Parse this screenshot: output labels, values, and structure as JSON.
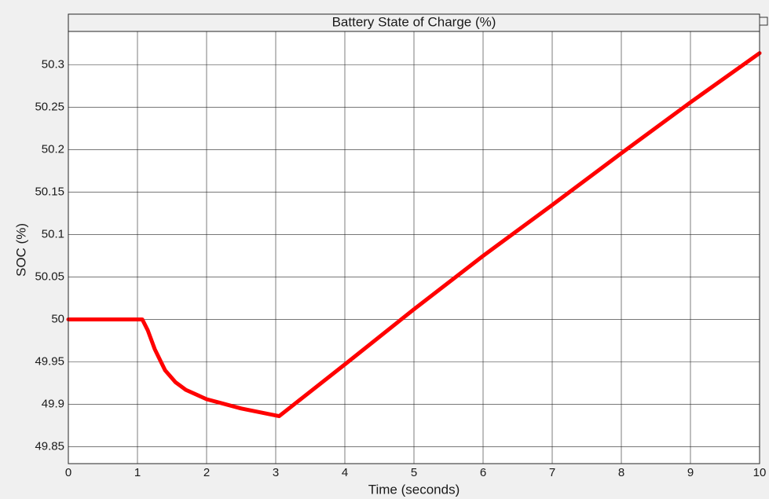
{
  "chart_data": {
    "type": "line",
    "title": "Battery State of Charge (%)",
    "x_label": "Time (seconds)",
    "y_label": "SOC (%)",
    "x": [
      0,
      0.5,
      1.07,
      1.15,
      1.25,
      1.4,
      1.55,
      1.7,
      2,
      2.5,
      3.05,
      4,
      5,
      6,
      7,
      8,
      9,
      10
    ],
    "series": [
      {
        "name": "SOC",
        "color": "#ff0000",
        "values": [
          50,
          50,
          50,
          49.987,
          49.965,
          49.94,
          49.926,
          49.917,
          49.906,
          49.895,
          49.886,
          49.947,
          50.012,
          50.075,
          50.135,
          50.196,
          50.256,
          50.314
        ]
      }
    ],
    "xlim": [
      0,
      10
    ],
    "xticks": [
      0,
      1,
      2,
      3,
      4,
      5,
      6,
      7,
      8,
      9,
      10
    ],
    "ylim": [
      49.83,
      50.36
    ],
    "yticks": [
      49.85,
      49.9,
      49.95,
      50,
      50.05,
      50.1,
      50.15,
      50.2,
      50.25,
      50.3
    ],
    "grid": true
  }
}
